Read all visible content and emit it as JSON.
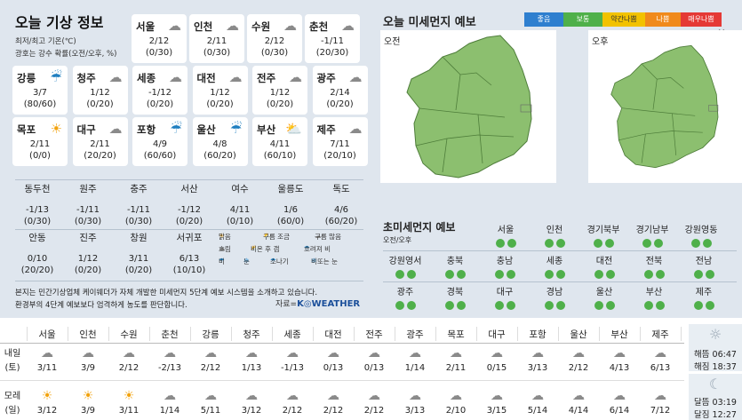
{
  "left": {
    "title": "오늘 기상 정보",
    "subtitle1": "최저/최고 기온(℃)",
    "subtitle2": "광호는 강수 확률(오전/오후, %)",
    "cards": [
      {
        "city": "서울",
        "icon": "cloud-icon",
        "temp": "2/12",
        "precip": "(0/30)"
      },
      {
        "city": "인천",
        "icon": "cloud-icon",
        "temp": "2/11",
        "precip": "(0/30)"
      },
      {
        "city": "수원",
        "icon": "cloud-icon",
        "temp": "2/12",
        "precip": "(0/30)"
      },
      {
        "city": "춘천",
        "icon": "cloud-icon",
        "temp": "-1/11",
        "precip": "(20/30)"
      },
      {
        "city": "강릉",
        "icon": "rain-icon",
        "temp": "3/7",
        "precip": "(80/60)"
      },
      {
        "city": "청주",
        "icon": "cloud-icon",
        "temp": "1/12",
        "precip": "(0/20)"
      },
      {
        "city": "세종",
        "icon": "cloud-icon",
        "temp": "-1/12",
        "precip": "(0/20)"
      },
      {
        "city": "대전",
        "icon": "cloud-icon",
        "temp": "1/12",
        "precip": "(0/20)"
      },
      {
        "city": "전주",
        "icon": "cloud-icon",
        "temp": "1/12",
        "precip": "(0/20)"
      },
      {
        "city": "광주",
        "icon": "cloud-icon",
        "temp": "2/14",
        "precip": "(0/20)"
      },
      {
        "city": "목포",
        "icon": "sun-icon",
        "temp": "2/11",
        "precip": "(0/0)"
      },
      {
        "city": "대구",
        "icon": "cloud-icon",
        "temp": "2/11",
        "precip": "(20/20)"
      },
      {
        "city": "포항",
        "icon": "rain-icon",
        "temp": "4/9",
        "precip": "(60/60)"
      },
      {
        "city": "울산",
        "icon": "rain-icon",
        "temp": "4/8",
        "precip": "(60/20)"
      },
      {
        "city": "부산",
        "icon": "sun-rain-icon",
        "temp": "4/11",
        "precip": "(60/10)"
      },
      {
        "city": "제주",
        "icon": "cloud-icon",
        "temp": "7/11",
        "precip": "(20/10)"
      }
    ],
    "small_row1": [
      {
        "city": "동두천",
        "temp": "-1/13",
        "precip": "(0/30)"
      },
      {
        "city": "원주",
        "temp": "-1/11",
        "precip": "(0/30)"
      },
      {
        "city": "충주",
        "temp": "-1/11",
        "precip": "(0/30)"
      },
      {
        "city": "서산",
        "temp": "-1/12",
        "precip": "(0/20)"
      },
      {
        "city": "여수",
        "temp": "4/11",
        "precip": "(0/10)"
      },
      {
        "city": "울릉도",
        "temp": "1/6",
        "precip": "(60/0)"
      },
      {
        "city": "독도",
        "temp": "4/6",
        "precip": "(60/20)"
      }
    ],
    "small_row2": [
      {
        "city": "안동",
        "temp": "0/10",
        "precip": "(20/20)"
      },
      {
        "city": "진주",
        "temp": "1/12",
        "precip": "(0/20)"
      },
      {
        "city": "창원",
        "temp": "3/11",
        "precip": "(0/20)"
      },
      {
        "city": "서귀포",
        "temp": "6/13",
        "precip": "(10/10)"
      }
    ],
    "legend": [
      "맑음",
      "구름 조금",
      "구름 많음",
      "흐림",
      "비온 후 갬",
      "흐려져 비",
      "비",
      "눈",
      "소나기",
      "비또는 눈"
    ],
    "note1": "본지는 민간기상업체 케이웨더가 자체 개발한 미세먼지 5단계 예보 시스템을 소개하고 있습니다.",
    "note2": "환경부의 4단계 예보보다 엄격하게 농도를 판단합니다.",
    "source_label": "자료=",
    "source_brand": "K◎WEATHER"
  },
  "dust": {
    "title": "오늘 미세먼지 예보",
    "levels": [
      {
        "label": "좋음",
        "color": "#2e7fcf"
      },
      {
        "label": "보통",
        "color": "#4fb04a"
      },
      {
        "label": "약간나쁨",
        "color": "#f2c200"
      },
      {
        "label": "나쁨",
        "color": "#f08a1c"
      },
      {
        "label": "매우나쁨",
        "color": "#e53935"
      }
    ],
    "am_label": "오전",
    "pm_label": "오후",
    "map_color": "#8cbf6f",
    "ultra_title": "초미세먼지 예보",
    "ultra_sub": "오전/오후",
    "regions_row1": [
      "서울",
      "인천",
      "경기북부",
      "경기남부",
      "강원영동"
    ],
    "regions_row2": [
      "강원영서",
      "충북",
      "충남",
      "세종",
      "대전",
      "전북",
      "전남"
    ],
    "regions_row3": [
      "광주",
      "경북",
      "대구",
      "경남",
      "울산",
      "부산",
      "제주"
    ]
  },
  "forecast": {
    "cities": [
      "서울",
      "인천",
      "수원",
      "춘천",
      "강릉",
      "청주",
      "세종",
      "대전",
      "전주",
      "광주",
      "목포",
      "대구",
      "포항",
      "울산",
      "부산",
      "제주"
    ],
    "tomorrow_label1": "내일",
    "tomorrow_label2": "(토)",
    "dayafter_label1": "모레",
    "dayafter_label2": "(일)",
    "tomorrow": [
      {
        "icon": "cloud-icon",
        "temp": "3/11"
      },
      {
        "icon": "cloud-icon",
        "temp": "3/9"
      },
      {
        "icon": "cloud-icon",
        "temp": "2/12"
      },
      {
        "icon": "cloud-icon",
        "temp": "-2/13"
      },
      {
        "icon": "cloud-icon",
        "temp": "2/12"
      },
      {
        "icon": "cloud-icon",
        "temp": "1/13"
      },
      {
        "icon": "cloud-icon",
        "temp": "-1/13"
      },
      {
        "icon": "cloud-icon",
        "temp": "0/13"
      },
      {
        "icon": "cloud-icon",
        "temp": "0/13"
      },
      {
        "icon": "cloud-icon",
        "temp": "1/14"
      },
      {
        "icon": "cloud-icon",
        "temp": "2/11"
      },
      {
        "icon": "cloud-icon",
        "temp": "0/15"
      },
      {
        "icon": "cloud-icon",
        "temp": "3/13"
      },
      {
        "icon": "cloud-icon",
        "temp": "2/12"
      },
      {
        "icon": "cloud-icon",
        "temp": "4/13"
      },
      {
        "icon": "cloud-icon",
        "temp": "6/13"
      }
    ],
    "dayafter": [
      {
        "icon": "sun-icon",
        "temp": "3/12"
      },
      {
        "icon": "sun-icon",
        "temp": "3/9"
      },
      {
        "icon": "sun-icon",
        "temp": "3/11"
      },
      {
        "icon": "cloud-icon",
        "temp": "1/14"
      },
      {
        "icon": "cloud-icon",
        "temp": "5/11"
      },
      {
        "icon": "cloud-icon",
        "temp": "3/12"
      },
      {
        "icon": "cloud-icon",
        "temp": "2/12"
      },
      {
        "icon": "cloud-icon",
        "temp": "2/12"
      },
      {
        "icon": "cloud-icon",
        "temp": "2/12"
      },
      {
        "icon": "cloud-icon",
        "temp": "3/13"
      },
      {
        "icon": "cloud-icon",
        "temp": "2/10"
      },
      {
        "icon": "cloud-icon",
        "temp": "3/15"
      },
      {
        "icon": "cloud-icon",
        "temp": "5/14"
      },
      {
        "icon": "cloud-icon",
        "temp": "4/14"
      },
      {
        "icon": "cloud-icon",
        "temp": "6/14"
      },
      {
        "icon": "cloud-icon",
        "temp": "7/12"
      }
    ],
    "sunrise": "해뜸 06:47",
    "sunset": "해짐 18:37",
    "moonrise": "달뜸 03:19",
    "moonset": "달짐 12:27"
  }
}
